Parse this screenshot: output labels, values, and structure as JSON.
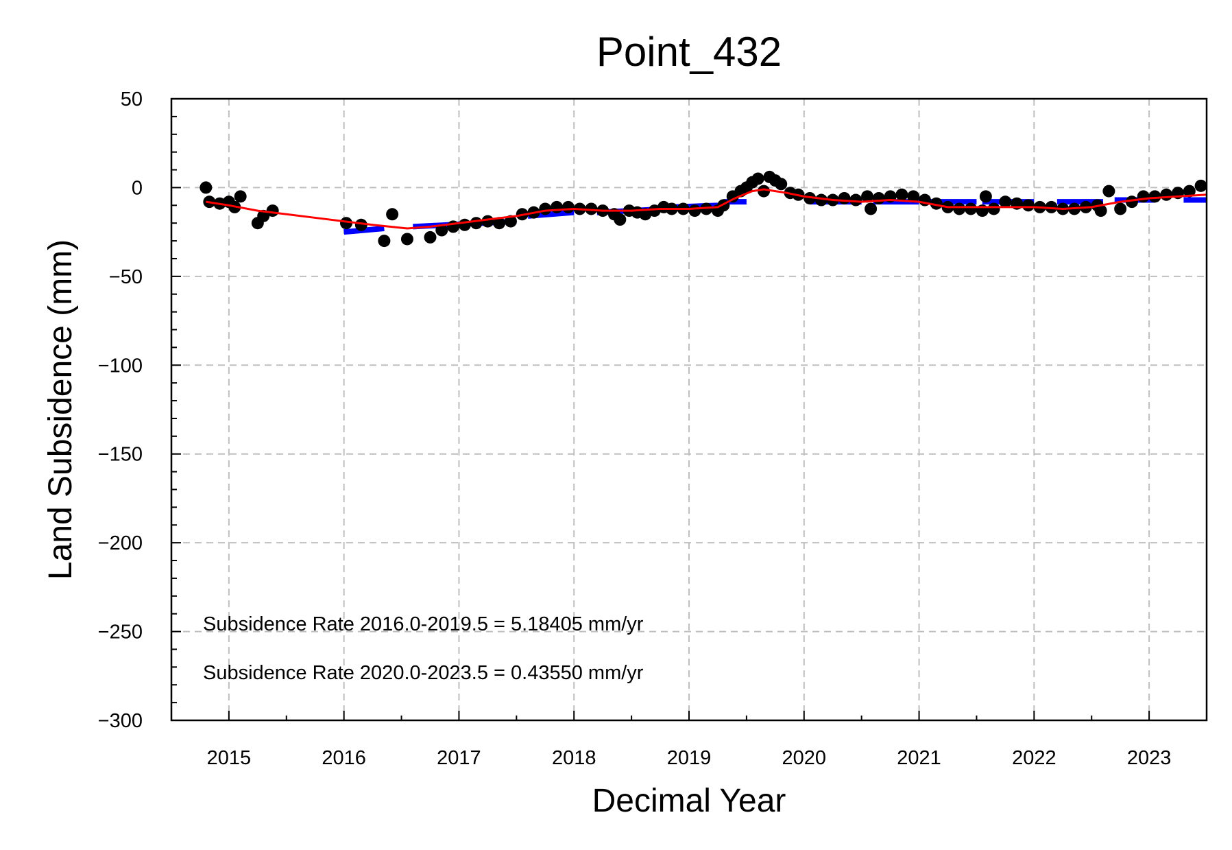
{
  "chart_data": {
    "type": "scatter",
    "title": "Point_432",
    "xlabel": "Decimal Year",
    "ylabel": "Land Subsidence (mm)",
    "xlim": [
      2014.5,
      2023.5
    ],
    "ylim": [
      -300,
      50
    ],
    "xticks": [
      2015,
      2016,
      2017,
      2018,
      2019,
      2020,
      2021,
      2022,
      2023
    ],
    "yticks": [
      50,
      0,
      -50,
      -100,
      -150,
      -200,
      -250,
      -300
    ],
    "ytick_labels": [
      "50",
      "0",
      "−50",
      "−100",
      "−150",
      "−200",
      "−250",
      "−300"
    ],
    "grid": true,
    "colors": {
      "observations": "#000000",
      "fit": "#ff0000",
      "annual_mean": "#0000ff"
    },
    "series": [
      {
        "kind": "points",
        "x": [
          2014.8,
          2014.83,
          2014.92,
          2015.0,
          2015.05,
          2015.1,
          2015.25,
          2015.3,
          2015.38,
          2016.02,
          2016.15,
          2016.35,
          2016.42,
          2016.55,
          2016.75,
          2016.85,
          2016.95,
          2017.05,
          2017.15,
          2017.25,
          2017.35,
          2017.45,
          2017.55,
          2017.65,
          2017.75,
          2017.85,
          2017.95,
          2018.05,
          2018.15,
          2018.25,
          2018.35,
          2018.4,
          2018.48,
          2018.55,
          2018.62,
          2018.7,
          2018.78,
          2018.85,
          2018.95,
          2019.05,
          2019.15,
          2019.25,
          2019.3,
          2019.38,
          2019.45,
          2019.5,
          2019.55,
          2019.6,
          2019.65,
          2019.7,
          2019.75,
          2019.8,
          2019.88,
          2019.95,
          2020.05,
          2020.15,
          2020.25,
          2020.35,
          2020.45,
          2020.55,
          2020.58,
          2020.65,
          2020.75,
          2020.85,
          2020.95,
          2021.05,
          2021.15,
          2021.25,
          2021.35,
          2021.45,
          2021.55,
          2021.58,
          2021.65,
          2021.75,
          2021.85,
          2021.95,
          2022.05,
          2022.15,
          2022.25,
          2022.35,
          2022.45,
          2022.55,
          2022.58,
          2022.65,
          2022.75,
          2022.85,
          2022.95,
          2023.05,
          2023.15,
          2023.25,
          2023.35,
          2023.45
        ],
        "y": [
          0,
          -8,
          -9,
          -8,
          -11,
          -5,
          -20,
          -16,
          -13,
          -20,
          -21,
          -30,
          -15,
          -29,
          -28,
          -24,
          -22,
          -21,
          -20,
          -19,
          -20,
          -19,
          -15,
          -14,
          -12,
          -11,
          -11,
          -12,
          -12,
          -13,
          -15,
          -18,
          -13,
          -14,
          -15,
          -13,
          -11,
          -12,
          -12,
          -13,
          -12,
          -13,
          -10,
          -5,
          -2,
          0,
          3,
          5,
          -2,
          6,
          4,
          2,
          -3,
          -4,
          -6,
          -7,
          -7,
          -6,
          -7,
          -5,
          -12,
          -6,
          -5,
          -4,
          -5,
          -7,
          -9,
          -11,
          -12,
          -12,
          -13,
          -5,
          -12,
          -8,
          -9,
          -10,
          -11,
          -11,
          -12,
          -12,
          -11,
          -10,
          -13,
          -2,
          -12,
          -8,
          -5,
          -5,
          -4,
          -3,
          -2,
          1
        ]
      },
      {
        "kind": "fit",
        "x": [
          2014.8,
          2015.0,
          2015.25,
          2015.5,
          2015.75,
          2016.0,
          2016.25,
          2016.55,
          2016.75,
          2017.0,
          2017.25,
          2017.5,
          2017.75,
          2018.0,
          2018.25,
          2018.5,
          2018.75,
          2019.0,
          2019.25,
          2019.4,
          2019.55,
          2019.65,
          2019.75,
          2019.85,
          2020.0,
          2020.25,
          2020.5,
          2020.75,
          2021.0,
          2021.25,
          2021.5,
          2021.75,
          2022.0,
          2022.25,
          2022.5,
          2022.75,
          2023.0,
          2023.25,
          2023.5
        ],
        "y": [
          -8,
          -10,
          -13,
          -15,
          -17,
          -19,
          -21,
          -23,
          -22,
          -20,
          -18,
          -16,
          -13,
          -12,
          -13,
          -13,
          -12,
          -12,
          -11,
          -6,
          -2,
          -1,
          -2,
          -3,
          -5,
          -7,
          -8,
          -7,
          -8,
          -11,
          -11,
          -11,
          -11,
          -12,
          -11,
          -8,
          -6,
          -5,
          -4
        ]
      },
      {
        "kind": "annual_mean",
        "segments": [
          {
            "x": [
              2016.0,
              2016.35
            ],
            "y": [
              -25,
              -23
            ]
          },
          {
            "x": [
              2016.6,
              2017.5
            ],
            "y": [
              -22,
              -19
            ]
          },
          {
            "x": [
              2017.6,
              2018.0
            ],
            "y": [
              -16,
              -14
            ]
          },
          {
            "x": [
              2018.2,
              2018.8
            ],
            "y": [
              -14,
              -12
            ]
          },
          {
            "x": [
              2018.85,
              2019.25
            ],
            "y": [
              -11,
              -10
            ]
          },
          {
            "x": [
              2019.3,
              2019.5
            ],
            "y": [
              -8,
              -8
            ]
          },
          {
            "x": [
              2020.05,
              2020.5
            ],
            "y": [
              -8,
              -8
            ]
          },
          {
            "x": [
              2020.6,
              2021.0
            ],
            "y": [
              -8,
              -8
            ]
          },
          {
            "x": [
              2021.1,
              2021.5
            ],
            "y": [
              -8,
              -8
            ]
          },
          {
            "x": [
              2021.55,
              2022.0
            ],
            "y": [
              -8,
              -8
            ]
          },
          {
            "x": [
              2022.2,
              2022.6
            ],
            "y": [
              -8,
              -8
            ]
          },
          {
            "x": [
              2022.7,
              2023.05
            ],
            "y": [
              -7,
              -7
            ]
          },
          {
            "x": [
              2023.3,
              2023.5
            ],
            "y": [
              -7,
              -7
            ]
          }
        ]
      }
    ],
    "annotations": [
      "Subsidence Rate 2016.0-2019.5 = 5.18405 mm/yr",
      "Subsidence Rate 2020.0-2023.5 = 0.43550 mm/yr"
    ]
  }
}
